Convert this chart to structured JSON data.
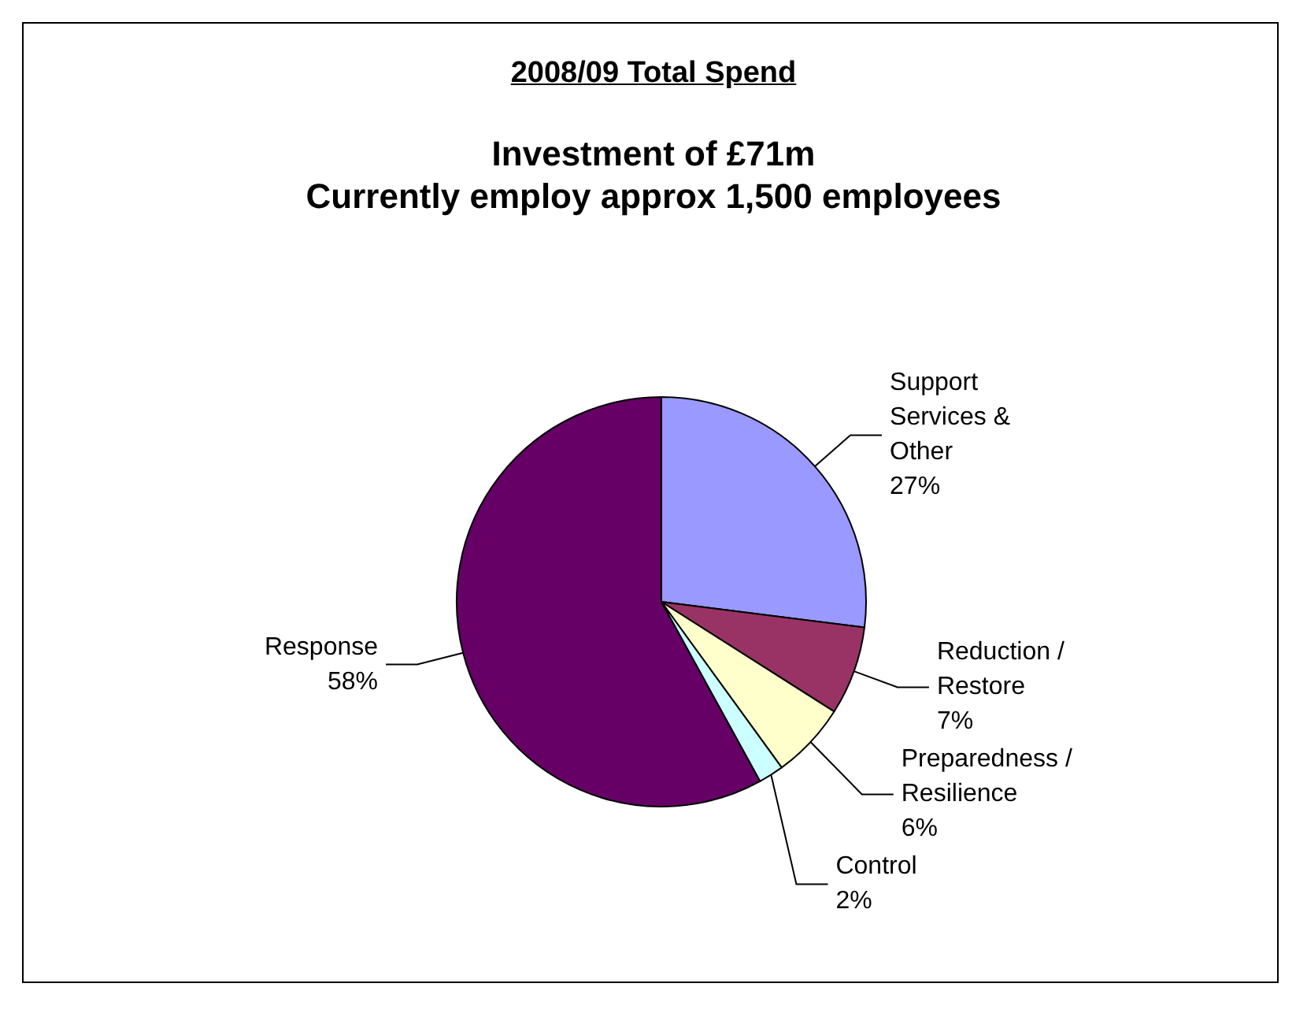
{
  "chart_data": {
    "type": "pie",
    "title": "2008/09 Total Spend",
    "subtitle": "Investment of £71m\nCurrently employ approx 1,500 employees",
    "categories": [
      "Support Services & Other",
      "Reduction / Restore",
      "Preparedness / Resilience",
      "Control",
      "Response"
    ],
    "values": [
      27,
      7,
      6,
      2,
      58
    ],
    "colors": [
      "#9999ff",
      "#993366",
      "#ffffcc",
      "#ccffff",
      "#660066"
    ],
    "value_labels": [
      "27%",
      "7%",
      "6%",
      "2%",
      "58%"
    ]
  }
}
